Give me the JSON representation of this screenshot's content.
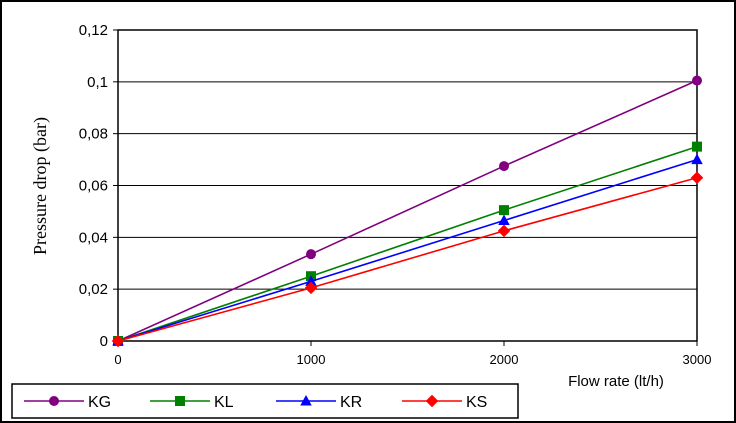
{
  "chart_data": {
    "type": "line",
    "title": "",
    "xlabel": "Flow rate (lt/h)",
    "ylabel": "Pressure drop (bar)",
    "x": [
      0,
      1000,
      2000,
      3000
    ],
    "x_tick_labels": [
      "0",
      "1000",
      "2000",
      "3000"
    ],
    "y_tick_labels": [
      "0",
      "0,02",
      "0,04",
      "0,06",
      "0,08",
      "0,1",
      "0,12"
    ],
    "y_ticks": [
      0,
      0.02,
      0.04,
      0.06,
      0.08,
      0.1,
      0.12
    ],
    "xlim": [
      0,
      3000
    ],
    "ylim": [
      0,
      0.12
    ],
    "grid": "horizontal",
    "legend_position": "bottom",
    "series": [
      {
        "name": "KG",
        "color": "#800080",
        "marker": "circle",
        "values": [
          0,
          0.0335,
          0.0675,
          0.1005
        ]
      },
      {
        "name": "KL",
        "color": "#008000",
        "marker": "square",
        "values": [
          0,
          0.025,
          0.0505,
          0.075
        ]
      },
      {
        "name": "KR",
        "color": "#0000ff",
        "marker": "triangle",
        "values": [
          0,
          0.023,
          0.0465,
          0.07
        ]
      },
      {
        "name": "KS",
        "color": "#ff0000",
        "marker": "diamond",
        "values": [
          0,
          0.0205,
          0.0425,
          0.063
        ]
      }
    ]
  }
}
